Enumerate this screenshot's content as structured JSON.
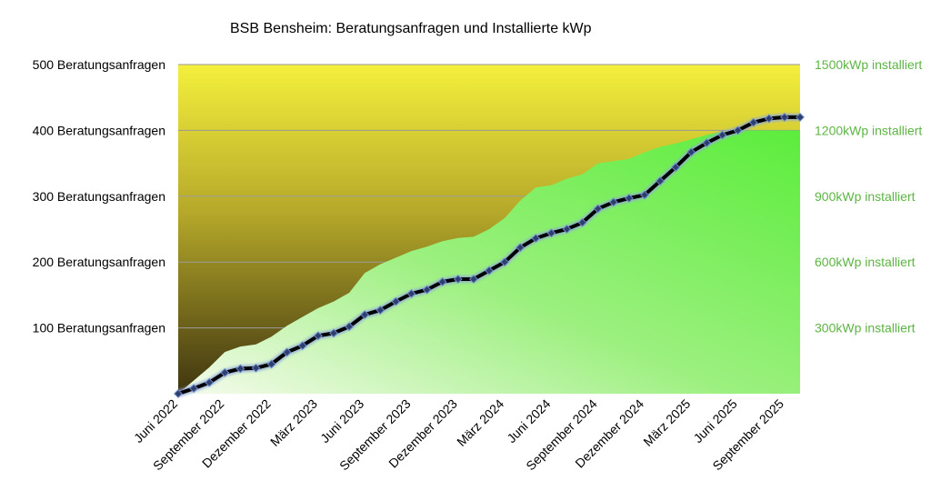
{
  "chart_data": {
    "type": "line",
    "title": "BSB Bensheim: Beratungsanfragen und Installierte kWp",
    "x": [
      "2022-06",
      "2022-07",
      "2022-08",
      "2022-09",
      "2022-10",
      "2022-11",
      "2022-12",
      "2023-01",
      "2023-02",
      "2023-03",
      "2023-04",
      "2023-05",
      "2023-06",
      "2023-07",
      "2023-08",
      "2023-09",
      "2023-10",
      "2023-11",
      "2023-12",
      "2024-01",
      "2024-02",
      "2024-03",
      "2024-04",
      "2024-05",
      "2024-06",
      "2024-07",
      "2024-08",
      "2024-09",
      "2024-10",
      "2024-11",
      "2024-12",
      "2025-01",
      "2025-02",
      "2025-03",
      "2025-04",
      "2025-05",
      "2025-06",
      "2025-07",
      "2025-08",
      "2025-09",
      "2025-10"
    ],
    "xtick_labels": [
      "Juni 2022",
      "September 2022",
      "Dezember 2022",
      "März 2023",
      "Juni 2023",
      "September 2023",
      "Dezember 2023",
      "März 2024",
      "Juni 2024",
      "September 2024",
      "Dezember 2024",
      "März 2025",
      "Juni 2025",
      "September 2025"
    ],
    "y_left": {
      "ylim": [
        0,
        500
      ],
      "tick_values": [
        100,
        200,
        300,
        400,
        500
      ],
      "tick_labels": [
        "100 Beratungsanfragen",
        "200 Beratungsanfragen",
        "300 Beratungsanfragen",
        "400 Beratungsanfragen",
        "500 Beratungsanfragen"
      ]
    },
    "y_right": {
      "ylim": [
        0,
        1500
      ],
      "tick_values": [
        300,
        600,
        900,
        1200,
        1500
      ],
      "tick_labels": [
        "300kWp installiert",
        "600kWp installiert",
        "900kWp installiert",
        "1200kWp installiert",
        "1500kWp installiert"
      ]
    },
    "series": [
      {
        "type": "line",
        "axis": "left",
        "values": [
          0,
          8,
          17,
          32,
          38,
          39,
          45,
          63,
          73,
          88,
          92,
          102,
          120,
          127,
          140,
          152,
          158,
          170,
          174,
          174,
          187,
          200,
          222,
          236,
          244,
          250,
          260,
          281,
          291,
          297,
          302,
          323,
          344,
          367,
          381,
          393,
          400,
          412,
          418,
          420,
          420
        ]
      },
      {
        "type": "area",
        "axis": "right",
        "values": [
          0,
          60,
          120,
          190,
          215,
          225,
          260,
          310,
          350,
          390,
          420,
          460,
          550,
          590,
          620,
          650,
          670,
          695,
          710,
          715,
          750,
          800,
          880,
          940,
          950,
          980,
          1000,
          1050,
          1060,
          1070,
          1100,
          1125,
          1140,
          1160,
          1180,
          1195,
          1200,
          1200,
          1200,
          1200,
          1200
        ]
      }
    ],
    "colors": {
      "line": "#000000",
      "marker": "#2e3f6e",
      "marker_edge": "#6a86c7",
      "area_light": "#f5fbec",
      "area_dark": "#5ced3c",
      "background_top": "#f4f03c",
      "background_bottom": "#3f3510",
      "right_axis_text": "#5db544",
      "gridline": "#9a9a9a"
    },
    "grid": true
  }
}
